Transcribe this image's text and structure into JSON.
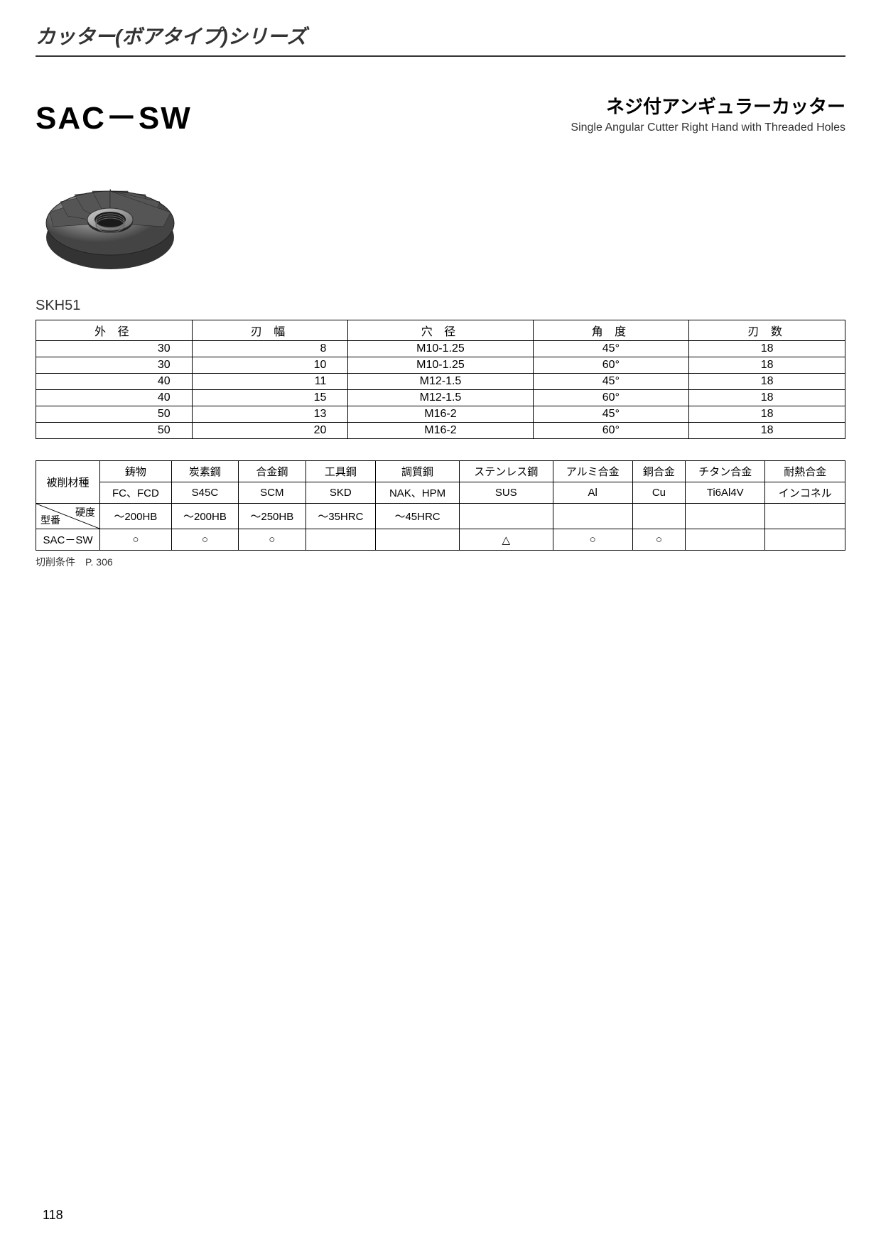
{
  "header": {
    "series": "カッター(ボアタイプ)シリーズ"
  },
  "title": {
    "code": "SAC－SW",
    "jp": "ネジ付アンギュラーカッター",
    "en": "Single Angular Cutter Right Hand with Threaded Holes"
  },
  "material_label": "SKH51",
  "spec_table": {
    "headers": [
      "外 径",
      "刃 幅",
      "穴 径",
      "角 度",
      "刃 数"
    ],
    "rows": [
      [
        "30",
        "8",
        "M10-1.25",
        "45°",
        "18"
      ],
      [
        "30",
        "10",
        "M10-1.25",
        "60°",
        "18"
      ],
      [
        "40",
        "11",
        "M12-1.5",
        "45°",
        "18"
      ],
      [
        "40",
        "15",
        "M12-1.5",
        "60°",
        "18"
      ],
      [
        "50",
        "13",
        "M16-2",
        "45°",
        "18"
      ],
      [
        "50",
        "20",
        "M16-2",
        "60°",
        "18"
      ]
    ]
  },
  "material_table": {
    "row1_label": "被削材種",
    "row1": [
      "鋳物",
      "炭素鋼",
      "合金鋼",
      "工具鋼",
      "調質鋼",
      "ステンレス鋼",
      "アルミ合金",
      "銅合金",
      "チタン合金",
      "耐熱合金"
    ],
    "row2": [
      "FC、FCD",
      "S45C",
      "SCM",
      "SKD",
      "NAK、HPM",
      "SUS",
      "Al",
      "Cu",
      "Ti6Al4V",
      "インコネル"
    ],
    "diag_top": "硬度",
    "diag_bottom": "型番",
    "row3": [
      "～200HB",
      "～200HB",
      "～250HB",
      "～35HRC",
      "～45HRC",
      "",
      "",
      "",
      "",
      ""
    ],
    "row4_label": "SAC－SW",
    "row4": [
      "○",
      "○",
      "○",
      "",
      "",
      "△",
      "○",
      "○",
      "",
      ""
    ]
  },
  "note": "切削条件　P. 306",
  "page_number": "118"
}
